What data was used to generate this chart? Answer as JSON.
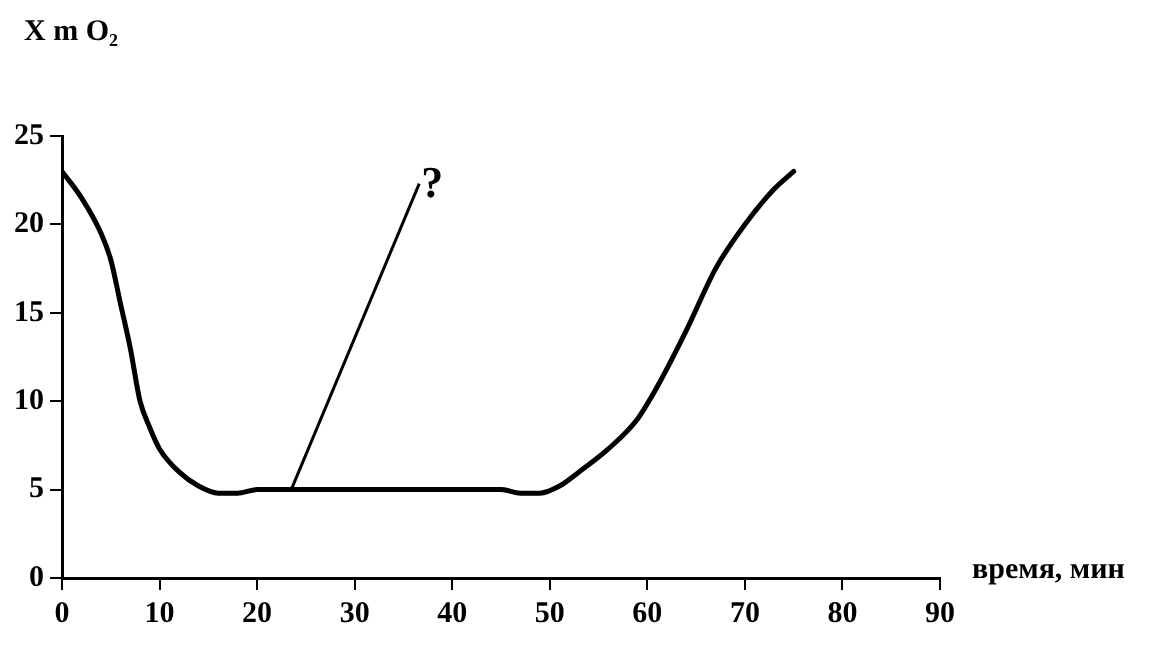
{
  "chart_data": {
    "type": "line",
    "ylabel": "X m O₂",
    "xlabel": "время, мин",
    "x": [
      0,
      2,
      4,
      5,
      6,
      7,
      8,
      9,
      10,
      12,
      14,
      16,
      18,
      20,
      25,
      30,
      35,
      40,
      45,
      47,
      49,
      51,
      53,
      56,
      59,
      61,
      64,
      67,
      70,
      73,
      75
    ],
    "series": [
      {
        "color": "#000000",
        "values": [
          23,
          21.5,
          19.5,
          18,
          15.5,
          13,
          10,
          8.5,
          7.3,
          6,
          5.2,
          4.8,
          4.8,
          5,
          5,
          5,
          5,
          5,
          5,
          4.8,
          4.8,
          5.2,
          6,
          7.3,
          9,
          10.8,
          14,
          17.5,
          20,
          22,
          23
        ]
      }
    ],
    "xlim": [
      0,
      90
    ],
    "xticks": [
      0,
      10,
      20,
      30,
      40,
      50,
      60,
      70,
      80,
      90
    ],
    "ylim": [
      0,
      25
    ],
    "yticks": [
      0,
      5,
      10,
      15,
      20,
      25
    ],
    "annotations": [
      {
        "text": "?",
        "x": 23.5,
        "y": 5
      }
    ],
    "grid": false,
    "legend": false,
    "marker": "none",
    "line_style": "solid"
  }
}
